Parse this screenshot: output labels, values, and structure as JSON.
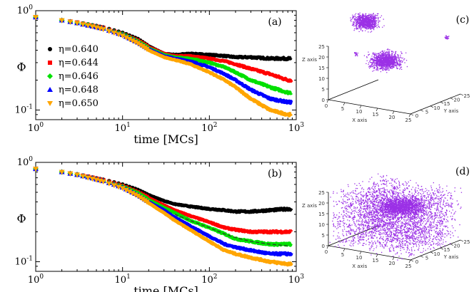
{
  "chart_data": [
    {
      "panel": "(a)",
      "type": "line",
      "xscale": "log",
      "yscale": "log",
      "xlim": [
        1,
        1000
      ],
      "ylim": [
        0.08,
        1
      ],
      "xlabel": "time [MCs]",
      "ylabel": "Φ",
      "xticks": [
        {
          "base": "10",
          "exp": "0"
        },
        {
          "base": "10",
          "exp": "1"
        },
        {
          "base": "10",
          "exp": "2"
        },
        {
          "base": "10",
          "exp": "3"
        }
      ],
      "yticks": [
        {
          "base": "10",
          "exp": "0",
          "value": 1
        },
        {
          "base": "10",
          "exp": "-1",
          "value": 0.1
        }
      ],
      "legend": {
        "placement": "left",
        "entries": [
          "η=0.640",
          "η=0.644",
          "η=0.646",
          "η=0.648",
          "η=0.650"
        ]
      },
      "series": [
        {
          "name": "η=0.640",
          "color": "#000000",
          "marker": "circle",
          "x": [
            1,
            2,
            3,
            4,
            6,
            10,
            15,
            20,
            30,
            40,
            60,
            100,
            150,
            200,
            300,
            500,
            800
          ],
          "y": [
            0.86,
            0.8,
            0.76,
            0.73,
            0.68,
            0.6,
            0.52,
            0.44,
            0.37,
            0.36,
            0.37,
            0.36,
            0.35,
            0.34,
            0.34,
            0.33,
            0.33
          ]
        },
        {
          "name": "η=0.644",
          "color": "#ff0000",
          "marker": "square",
          "x": [
            1,
            2,
            3,
            4,
            6,
            10,
            15,
            20,
            30,
            40,
            60,
            100,
            150,
            200,
            300,
            500,
            800
          ],
          "y": [
            0.86,
            0.8,
            0.76,
            0.72,
            0.67,
            0.58,
            0.5,
            0.43,
            0.37,
            0.35,
            0.35,
            0.33,
            0.31,
            0.29,
            0.26,
            0.23,
            0.2
          ]
        },
        {
          "name": "η=0.646",
          "color": "#00e000",
          "marker": "diamond",
          "x": [
            1,
            2,
            3,
            4,
            6,
            10,
            15,
            20,
            30,
            40,
            60,
            100,
            150,
            200,
            300,
            500,
            800
          ],
          "y": [
            0.86,
            0.8,
            0.75,
            0.72,
            0.66,
            0.58,
            0.49,
            0.42,
            0.36,
            0.34,
            0.33,
            0.3,
            0.27,
            0.24,
            0.2,
            0.17,
            0.15
          ]
        },
        {
          "name": "η=0.648",
          "color": "#0000ff",
          "marker": "triangle",
          "x": [
            1,
            2,
            3,
            4,
            6,
            10,
            15,
            20,
            30,
            40,
            60,
            100,
            150,
            200,
            300,
            500,
            800
          ],
          "y": [
            0.86,
            0.8,
            0.75,
            0.71,
            0.66,
            0.57,
            0.48,
            0.41,
            0.35,
            0.33,
            0.31,
            0.27,
            0.23,
            0.2,
            0.16,
            0.13,
            0.12
          ]
        },
        {
          "name": "η=0.650",
          "color": "#ffa500",
          "marker": "triangle-down",
          "x": [
            1,
            2,
            3,
            4,
            6,
            10,
            15,
            20,
            30,
            40,
            60,
            100,
            150,
            200,
            300,
            500,
            800
          ],
          "y": [
            0.86,
            0.8,
            0.75,
            0.71,
            0.65,
            0.56,
            0.47,
            0.4,
            0.34,
            0.32,
            0.29,
            0.24,
            0.2,
            0.17,
            0.13,
            0.1,
            0.09
          ]
        }
      ]
    },
    {
      "panel": "(b)",
      "type": "line",
      "xscale": "log",
      "yscale": "log",
      "xlim": [
        1,
        1000
      ],
      "ylim": [
        0.08,
        1
      ],
      "xlabel": "time [MCs]",
      "ylabel": "Φ",
      "xticks": [
        {
          "base": "10",
          "exp": "0"
        },
        {
          "base": "10",
          "exp": "1"
        },
        {
          "base": "10",
          "exp": "2"
        },
        {
          "base": "10",
          "exp": "3"
        }
      ],
      "yticks": [
        {
          "base": "10",
          "exp": "0",
          "value": 1
        },
        {
          "base": "10",
          "exp": "-1",
          "value": 0.1
        }
      ],
      "series": [
        {
          "name": "η=0.640",
          "color": "#000000",
          "marker": "circle",
          "x": [
            1,
            2,
            3,
            4,
            6,
            10,
            15,
            20,
            30,
            40,
            60,
            100,
            150,
            200,
            300,
            500,
            800
          ],
          "y": [
            0.86,
            0.8,
            0.76,
            0.72,
            0.67,
            0.6,
            0.53,
            0.47,
            0.41,
            0.38,
            0.36,
            0.34,
            0.33,
            0.32,
            0.32,
            0.33,
            0.34
          ]
        },
        {
          "name": "η=0.644",
          "color": "#ff0000",
          "marker": "square",
          "x": [
            1,
            2,
            3,
            4,
            6,
            10,
            15,
            20,
            30,
            40,
            60,
            100,
            150,
            200,
            300,
            500,
            800
          ],
          "y": [
            0.86,
            0.8,
            0.75,
            0.72,
            0.66,
            0.58,
            0.5,
            0.44,
            0.37,
            0.33,
            0.29,
            0.25,
            0.22,
            0.21,
            0.2,
            0.2,
            0.2
          ]
        },
        {
          "name": "η=0.646",
          "color": "#00e000",
          "marker": "diamond",
          "x": [
            1,
            2,
            3,
            4,
            6,
            10,
            15,
            20,
            30,
            40,
            60,
            100,
            150,
            200,
            300,
            500,
            800
          ],
          "y": [
            0.86,
            0.8,
            0.75,
            0.71,
            0.65,
            0.57,
            0.49,
            0.42,
            0.35,
            0.31,
            0.26,
            0.22,
            0.19,
            0.17,
            0.16,
            0.15,
            0.15
          ]
        },
        {
          "name": "η=0.648",
          "color": "#0000ff",
          "marker": "triangle",
          "x": [
            1,
            2,
            3,
            4,
            6,
            10,
            15,
            20,
            30,
            40,
            60,
            100,
            150,
            200,
            300,
            500,
            800
          ],
          "y": [
            0.86,
            0.8,
            0.75,
            0.71,
            0.65,
            0.56,
            0.47,
            0.4,
            0.33,
            0.28,
            0.23,
            0.18,
            0.15,
            0.14,
            0.13,
            0.12,
            0.12
          ]
        },
        {
          "name": "η=0.650",
          "color": "#ffa500",
          "marker": "triangle-down",
          "x": [
            1,
            2,
            3,
            4,
            6,
            10,
            15,
            20,
            30,
            40,
            60,
            100,
            150,
            200,
            300,
            500,
            800
          ],
          "y": [
            0.86,
            0.8,
            0.75,
            0.7,
            0.64,
            0.55,
            0.46,
            0.39,
            0.31,
            0.26,
            0.21,
            0.16,
            0.13,
            0.12,
            0.11,
            0.1,
            0.095
          ]
        }
      ],
      "fit": {
        "style": "dashed",
        "color": "#333333",
        "x": [
          40,
          60,
          100,
          150,
          200,
          300,
          500,
          800
        ],
        "y": [
          0.3,
          0.26,
          0.22,
          0.19,
          0.175,
          0.16,
          0.15,
          0.145
        ]
      }
    },
    {
      "panel": "(c)",
      "type": "scatter3d",
      "description_labels": {
        "x": "X axis",
        "y": "Y axis",
        "z": "Z axis"
      },
      "x_ticks": [
        "0",
        "5",
        "10",
        "15",
        "20",
        "25"
      ],
      "y_ticks": [
        "0",
        "5",
        "10",
        "15",
        "20",
        "25"
      ],
      "z_ticks": [
        "0",
        "5",
        "10",
        "15",
        "20",
        "25"
      ],
      "color": "#9b30e6",
      "style": "clustered"
    },
    {
      "panel": "(d)",
      "type": "scatter3d",
      "description_labels": {
        "x": "X axis",
        "y": "Y axis",
        "z": "Z axis"
      },
      "x_ticks": [
        "0",
        "5",
        "10",
        "15",
        "20",
        "25"
      ],
      "y_ticks": [
        "0",
        "5",
        "10",
        "15",
        "20",
        "25"
      ],
      "z_ticks": [
        "0",
        "5",
        "10",
        "15",
        "20",
        "25"
      ],
      "color": "#9b30e6",
      "style": "diffuse"
    }
  ]
}
